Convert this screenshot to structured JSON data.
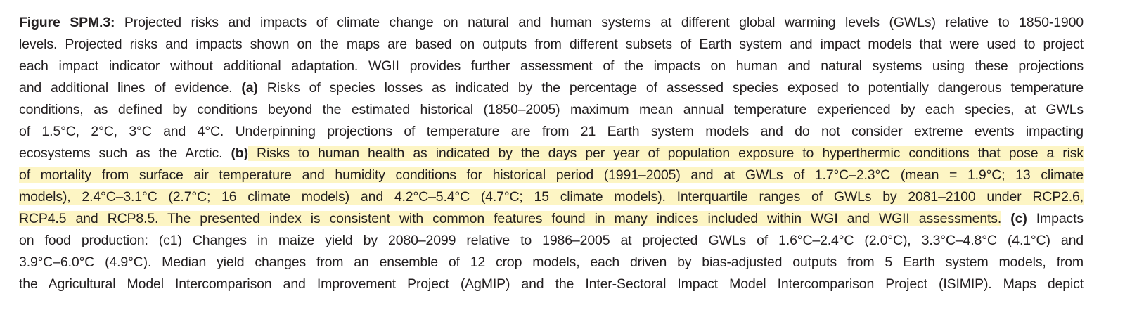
{
  "caption": {
    "lines": [
      [
        {
          "text": "Figure SPM.3:",
          "bold": true
        },
        {
          "text": " Projected risks and impacts of climate change on natural and human systems at different global warming levels (GWLs) relative to 1850-1900"
        }
      ],
      [
        {
          "text": "levels. Projected risks and impacts shown on the maps are based on outputs from different subsets of Earth system and impact models that were used to project"
        }
      ],
      [
        {
          "text": "each impact indicator without additional adaptation. WGII provides further assessment of the impacts on human and natural systems using these projections"
        }
      ],
      [
        {
          "text": "and additional lines of evidence. "
        },
        {
          "text": "(a)",
          "bold": true
        },
        {
          "text": " Risks of species losses as indicated by the percentage of assessed species exposed to potentially dangerous temperature"
        }
      ],
      [
        {
          "text": "conditions, as defined by conditions beyond the estimated historical (1850–2005) maximum mean annual temperature experienced by each species, at GWLs"
        }
      ],
      [
        {
          "text": "of 1.5°C, 2°C, 3°C and 4°C. Underpinning projections of temperature are from 21 Earth system models and do not consider extreme events impacting"
        }
      ],
      [
        {
          "text": "ecosystems such as the Arctic. "
        },
        {
          "text": "(b)",
          "bold": true
        },
        {
          "text": " Risks to human health as indicated by the days per year of population exposure to hyperthermic conditions that pose a risk",
          "highlight": true
        }
      ],
      [
        {
          "text": "of mortality from surface air temperature and humidity conditions for historical period (1991–2005) and at GWLs of 1.7°C–2.3°C (mean = 1.9°C; 13 climate",
          "highlight": true
        }
      ],
      [
        {
          "text": "models), 2.4°C–3.1°C (2.7°C; 16 climate models) and 4.2°C–5.4°C (4.7°C; 15 climate models). Interquartile ranges of GWLs by 2081–2100 under RCP2.6,",
          "highlight": true
        }
      ],
      [
        {
          "text": "RCP4.5 and RCP8.5. The presented index is consistent with common features found in many indices included within WGI and WGII assessments.",
          "highlight": true
        },
        {
          "text": " "
        },
        {
          "text": "(c)",
          "bold": true
        },
        {
          "text": " Impacts"
        }
      ],
      [
        {
          "text": "on food production: (c1) Changes in maize yield by 2080–2099 relative to 1986–2005 at projected GWLs of 1.6°C–2.4°C (2.0°C), 3.3°C–4.8°C (4.1°C) and"
        }
      ],
      [
        {
          "text": "3.9°C–6.0°C (4.9°C). Median yield changes from an ensemble of 12 crop models, each driven by bias-adjusted outputs from 5 Earth system models, from"
        }
      ],
      [
        {
          "text": "the Agricultural Model Intercomparison and Improvement Project (AgMIP) and the Inter-Sectoral Impact Model Intercomparison Project (ISIMIP). Maps depict"
        }
      ]
    ]
  }
}
